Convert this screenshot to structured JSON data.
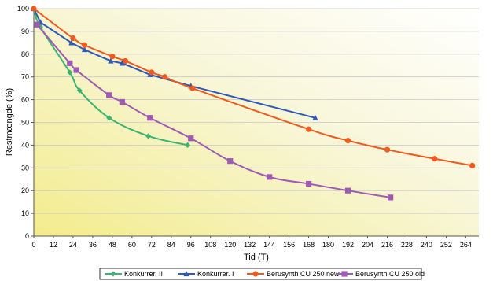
{
  "chart_data": {
    "type": "line",
    "xlabel": "Tid (T)",
    "ylabel": "Restmængde (%)",
    "xlim": [
      0,
      272
    ],
    "ylim": [
      0,
      100
    ],
    "xticks": [
      0,
      12,
      24,
      36,
      48,
      60,
      72,
      84,
      96,
      108,
      120,
      132,
      144,
      156,
      168,
      180,
      192,
      204,
      216,
      228,
      240,
      252,
      264
    ],
    "yticks": [
      0,
      10,
      20,
      30,
      40,
      50,
      60,
      70,
      80,
      90,
      100
    ],
    "grid": "horizontal",
    "legend_position": "bottom",
    "series": [
      {
        "name": "Konkurrer. II",
        "color": "#3cb371",
        "marker": "diamond",
        "smooth": true,
        "x": [
          0,
          4,
          22,
          28,
          46,
          70,
          94
        ],
        "y": [
          100,
          92,
          72,
          64,
          52,
          44,
          40
        ]
      },
      {
        "name": "Konkurrer. I",
        "color": "#2e59b8",
        "marker": "triangle",
        "smooth": false,
        "x": [
          0,
          4,
          23,
          31,
          47,
          54,
          71,
          96,
          172
        ],
        "y": [
          100,
          94,
          85,
          82,
          77,
          76,
          71,
          66,
          52
        ]
      },
      {
        "name": "Berusynth CU 250 new",
        "color": "#f05a1e",
        "marker": "circle",
        "smooth": true,
        "x": [
          0,
          24,
          31,
          48,
          56,
          72,
          80,
          97,
          168,
          192,
          216,
          245,
          268
        ],
        "y": [
          100,
          87,
          84,
          79,
          77,
          72,
          70,
          65,
          47,
          42,
          38,
          34,
          31
        ]
      },
      {
        "name": "Berusynth CU 250 old",
        "color": "#a05ab4",
        "marker": "square",
        "smooth": true,
        "x": [
          2,
          22,
          26,
          46,
          54,
          71,
          96,
          120,
          144,
          168,
          192,
          218
        ],
        "y": [
          93,
          76,
          73,
          62,
          59,
          52,
          43,
          33,
          26,
          23,
          20,
          17
        ]
      }
    ]
  }
}
